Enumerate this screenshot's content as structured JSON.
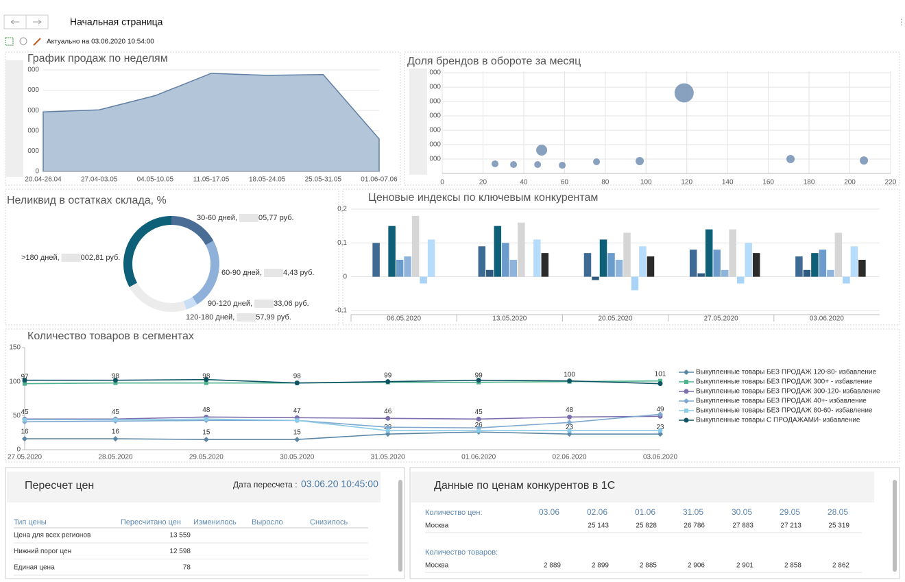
{
  "header": {
    "title": "Начальная страница",
    "status": "Актуально на 03.06.2020 10:54:00"
  },
  "chart_data": [
    {
      "type": "area",
      "title": "График продаж по неделям",
      "categories": [
        "20.04-26.04",
        "27.04-03.05",
        "04.05-10.05",
        "11.05-17.05",
        "18.05-24.05",
        "25.05-31.05",
        "01.06-07.06"
      ],
      "values": [
        2.93,
        3.03,
        3.73,
        4.83,
        4.73,
        4.77,
        1.6
      ],
      "color": "#b3c5d8",
      "line_color": "#5f7ea3",
      "ylim": [
        0,
        5.2
      ],
      "yticks": [
        0,
        {
          "value": 1,
          "label": "000"
        },
        {
          "value": 2,
          "label": "000"
        },
        {
          "value": 3,
          "label": "000"
        },
        {
          "value": 4,
          "label": "000"
        },
        {
          "value": 5,
          "label": "000"
        }
      ],
      "grid": true
    },
    {
      "type": "bubble",
      "title": "Доля брендов в обороте за месяц",
      "x": [
        25.9,
        35,
        46.8,
        48.8,
        58.9,
        75.7,
        96.9,
        118.7,
        170.9,
        206.9
      ],
      "values": [
        0.67,
        0.62,
        0.62,
        1.62,
        0.57,
        0.81,
        0.86,
        5.6,
        1.0,
        0.9
      ],
      "sizes": [
        5,
        5,
        5,
        8,
        5,
        5,
        6,
        14,
        6,
        6
      ],
      "color": "#7290b4",
      "xlim": [
        0,
        220
      ],
      "xticks": [
        0,
        20,
        40,
        60,
        80,
        100,
        120,
        140,
        160,
        180,
        200,
        220
      ],
      "ylim": [
        0,
        7.1
      ],
      "yticks": [
        {
          "value": 1,
          "label": "000"
        },
        {
          "value": 2,
          "label": "000"
        },
        {
          "value": 3,
          "label": "000"
        },
        {
          "value": 4,
          "label": "000"
        },
        {
          "value": 5,
          "label": "000"
        },
        {
          "value": 6,
          "label": "000"
        },
        {
          "value": 7,
          "label": "000"
        }
      ],
      "grid": true
    },
    {
      "type": "donut",
      "title": "Неликвид в остатках склада, %",
      "categories": [
        "30-60 дней,",
        "60-90 дней,",
        "90-120 дней,",
        "120-180 дней,",
        ">180 дней,"
      ],
      "amounts": [
        "05,77 руб.",
        "4,43 руб.",
        "33,06 руб.",
        "57,99 руб.",
        "002,81 руб."
      ],
      "values": [
        17,
        24,
        4,
        22,
        33
      ],
      "colors": [
        "#4a6d96",
        "#8fb0d8",
        "#c9def5",
        "#ececec",
        "#0e5f78"
      ]
    },
    {
      "type": "bar",
      "title": "Ценовые индексы по ключевым конкурентам",
      "categories": [
        "06.05.2020",
        "13.05.2020",
        "20.05.2020",
        "27.05.2020",
        "03.06.2020"
      ],
      "series": [
        {
          "color": "#3d6b94",
          "values": [
            0.1,
            0.09,
            0.07,
            0.08,
            0.06
          ]
        },
        {
          "color": "#2e5a80",
          "values": [
            null,
            0.02,
            -0.01,
            0.01,
            0.02
          ]
        },
        {
          "color": "#0e5f78",
          "values": [
            0.15,
            0.15,
            0.11,
            0.14,
            0.07
          ]
        },
        {
          "color": "#6c9ccc",
          "values": [
            0.05,
            0.1,
            0.07,
            0.08,
            0.08
          ]
        },
        {
          "color": "#8fb4dc",
          "values": [
            0.06,
            0.05,
            0.05,
            0.02,
            0.02
          ]
        },
        {
          "color": "#d6d6d6",
          "values": [
            0.18,
            0.16,
            0.13,
            0.14,
            0.13
          ]
        },
        {
          "color": "#a9d4f7",
          "values": [
            -0.02,
            null,
            -0.04,
            -0.02,
            -0.02
          ]
        },
        {
          "color": "#b6dcfb",
          "values": [
            0.11,
            0.11,
            0.09,
            0.1,
            0.09
          ]
        },
        {
          "color": "#2b2b2b",
          "values": [
            null,
            0.07,
            0.06,
            0.07,
            0.05
          ]
        }
      ],
      "ylim": [
        -0.1,
        0.2
      ],
      "yticks": [
        {
          "value": -0.1,
          "label": "-0,1"
        },
        0,
        {
          "value": 0.1,
          "label": "0,1"
        },
        {
          "value": 0.2,
          "label": "0,2"
        }
      ],
      "grid": true
    },
    {
      "type": "line",
      "title": "Количество товаров в сегментах",
      "categories": [
        "27.05.2020",
        "28.05.2020",
        "29.05.2020",
        "30.05.2020",
        "31.05.2020",
        "01.06.2020",
        "02.06.2020",
        "03.06.2020"
      ],
      "series": [
        {
          "name": "Выкупленные товары БЕЗ ПРОДАЖ 120-80- избавление",
          "color": "#5b87a6",
          "marker": "diamond",
          "data_labels": true,
          "values": [
            16,
            16,
            15,
            15,
            23,
            26,
            23,
            23
          ]
        },
        {
          "name": "Выкупленные товары БЕЗ ПРОДАЖ 300+ - избавление",
          "color": "#4fb38f",
          "marker": "square",
          "data_labels": true,
          "values": [
            97,
            98,
            98,
            98,
            99,
            99,
            100,
            101
          ]
        },
        {
          "name": "Выкупленные товары БЕЗ ПРОДАЖ 300-120- избавление",
          "color": "#7e6fae",
          "marker": "circle",
          "data_labels": true,
          "values": [
            45,
            45,
            48,
            47,
            46,
            45,
            48,
            49
          ]
        },
        {
          "name": "Выкупленные товары БЕЗ ПРОДАЖ 40+- избавление",
          "color": "#7fa8d0",
          "marker": "diamond",
          "data_labels": false,
          "values": [
            41,
            42,
            43,
            43,
            33,
            32,
            40,
            52
          ]
        },
        {
          "name": "Выкупленные товары БЕЗ ПРОДАЖ 80-60- избавление",
          "color": "#8ccbe6",
          "marker": "square",
          "data_labels": false,
          "values": [
            44,
            44,
            45,
            43,
            28,
            28,
            28,
            28
          ]
        },
        {
          "name": "Выкупленные товары С ПРОДАЖАМИ- избавление",
          "color": "#0e5462",
          "marker": "circle",
          "data_labels": false,
          "values": [
            102,
            102,
            103,
            98,
            100,
            102,
            101,
            97
          ]
        }
      ],
      "ylim": [
        0,
        150
      ],
      "yticks": [
        0,
        50,
        100,
        150
      ],
      "grid": false
    }
  ],
  "recalc": {
    "title": "Пересчет цен",
    "date_label": "Дата пересчета :",
    "date": "03.06.20 10:45:00",
    "columns": [
      "Тип цены",
      "Пересчитано цен",
      "Изменилось",
      "Выросло",
      "Снизилось"
    ],
    "rows": [
      [
        "Цена для всех регионов",
        "13 559"
      ],
      [
        "Нижний порог цен",
        "12 598"
      ],
      [
        "Единая цена",
        "78"
      ]
    ]
  },
  "competitors": {
    "title": "Данные по ценам конкурентов в 1С",
    "dates": [
      "03.06",
      "02.06",
      "01.06",
      "31.05",
      "30.05",
      "29.05",
      "28.05"
    ],
    "sections": [
      {
        "label": "Количество цен:",
        "rows": [
          {
            "name": "Москва",
            "values": [
              null,
              "25 143",
              "25 828",
              "26 786",
              "27 883",
              "27 213",
              "25 319"
            ]
          }
        ]
      },
      {
        "label": "Количество товаров:",
        "rows": [
          {
            "name": "Москва",
            "values": [
              "2 889",
              "2 899",
              "2 885",
              "2 906",
              "2 901",
              "2 858",
              "2 862"
            ]
          }
        ]
      }
    ]
  }
}
